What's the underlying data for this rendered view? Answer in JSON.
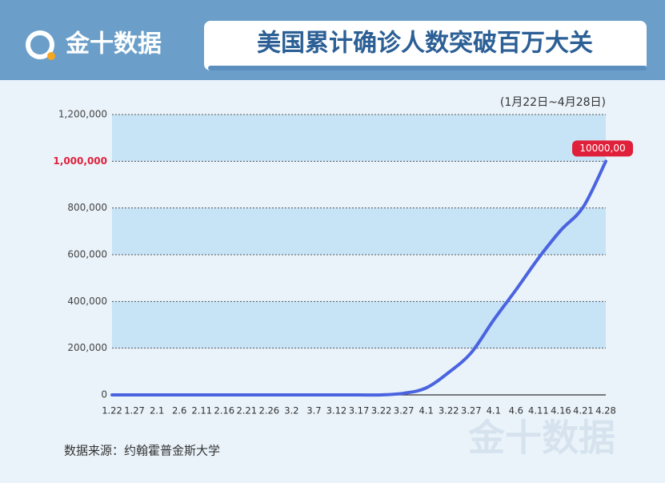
{
  "chart_data": {
    "type": "line",
    "brand": "金十数据",
    "title": "美国累计确诊人数突破百万大关",
    "subtitle": "(1月22日~4月28日)",
    "source": "数据来源：约翰霍普金斯大学",
    "categories": [
      "1.22",
      "1.27",
      "2.1",
      "2.6",
      "2.11",
      "2.16",
      "2.21",
      "2.26",
      "3.2",
      "3.7",
      "3.12",
      "3.17",
      "3.22",
      "3.27",
      "4.1",
      "3.22",
      "3.27",
      "4.1",
      "4.6",
      "4.11",
      "4.16",
      "4.21",
      "4.28"
    ],
    "series": [
      {
        "color": "#4a63e0",
        "values": [
          0,
          0,
          0,
          0,
          0,
          0,
          0,
          0,
          0,
          0,
          0,
          0,
          0,
          7000,
          30000,
          96000,
          180000,
          320000,
          450000,
          585000,
          705000,
          805000,
          1000000
        ],
        "value_labels": [
          null,
          null,
          null,
          null,
          null,
          null,
          null,
          null,
          null,
          null,
          null,
          null,
          null,
          null,
          null,
          null,
          null,
          null,
          null,
          null,
          null,
          null,
          "10000,00"
        ]
      }
    ],
    "ylim": [
      0,
      1200000
    ],
    "yticks": [
      0,
      {
        "value": 200000,
        "label": "200,000"
      },
      {
        "value": 400000,
        "label": "400,000"
      },
      {
        "value": 600000,
        "label": "600,000"
      },
      {
        "value": 800000,
        "label": "800,000"
      },
      {
        "value": 1000000,
        "label": "1,000,000"
      },
      {
        "value": 1200000,
        "label": "1,200,000"
      }
    ],
    "highlight_ytick": 1000000,
    "highlight_color": "#e0203a",
    "band_color": "#c7e3f6",
    "grid": true
  }
}
